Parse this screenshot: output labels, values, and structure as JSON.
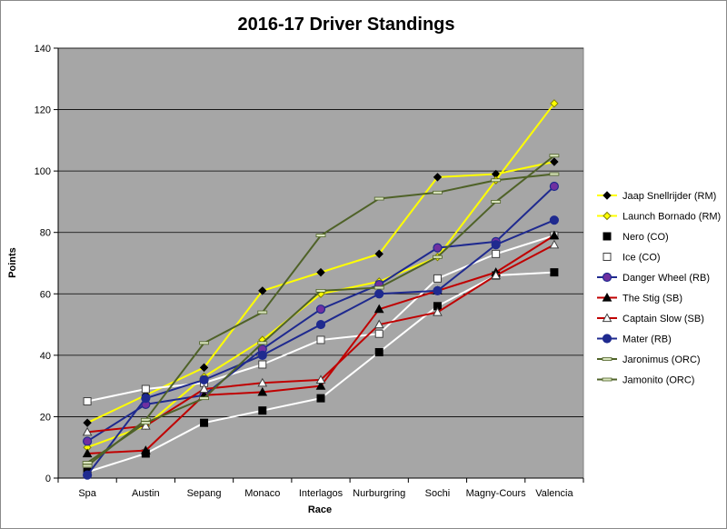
{
  "chart_data": {
    "type": "line",
    "title": "2016-17 Driver Standings",
    "xlabel": "Race",
    "ylabel": "Points",
    "ylim": [
      0,
      140
    ],
    "ytick_step": 20,
    "grid": "y-major",
    "legend_position": "right",
    "plot_background": "#a6a6a6",
    "categories": [
      "Spa",
      "Austin",
      "Sepang",
      "Monaco",
      "Interlagos",
      "Nurburgring",
      "Sochi",
      "Magny-Cours",
      "Valencia"
    ],
    "series": [
      {
        "name": "Jaap Snellrijder (RM)",
        "values": [
          18,
          27,
          36,
          61,
          67,
          73,
          98,
          99,
          103
        ],
        "color": "#ffff00",
        "marker": "diamond",
        "marker_fill": "#000000",
        "marker_stroke": "#000000"
      },
      {
        "name": "Launch Bornado (RM)",
        "values": [
          10,
          17,
          33,
          45,
          60,
          64,
          72,
          97,
          122
        ],
        "color": "#ffff00",
        "marker": "diamond",
        "marker_fill": "#ffff00",
        "marker_stroke": "#808000"
      },
      {
        "name": "Nero (CO)",
        "values": [
          2,
          8,
          18,
          22,
          26,
          41,
          56,
          66,
          67
        ],
        "color": "#ffffff",
        "marker": "square",
        "marker_fill": "#000000",
        "marker_stroke": "#000000"
      },
      {
        "name": "Ice (CO)",
        "values": [
          25,
          29,
          31,
          37,
          45,
          47,
          65,
          73,
          79
        ],
        "color": "#ffffff",
        "marker": "square",
        "marker_fill": "#ffffff",
        "marker_stroke": "#404040"
      },
      {
        "name": "Danger Wheel (RB)",
        "values": [
          12,
          24,
          27,
          42,
          55,
          63,
          75,
          77,
          95
        ],
        "color": "#1f2a8f",
        "marker": "circle",
        "marker_fill": "#7030a0",
        "marker_stroke": "#1f2a8f"
      },
      {
        "name": "The Stig (SB)",
        "values": [
          8,
          9,
          27,
          28,
          30,
          55,
          61,
          67,
          79
        ],
        "color": "#c00000",
        "marker": "triangle",
        "marker_fill": "#000000",
        "marker_stroke": "#000000"
      },
      {
        "name": "Captain Slow (SB)",
        "values": [
          15,
          17,
          29,
          31,
          32,
          50,
          54,
          66,
          76
        ],
        "color": "#c00000",
        "marker": "triangle",
        "marker_fill": "#ffffff",
        "marker_stroke": "#404040"
      },
      {
        "name": "Mater (RB)",
        "values": [
          1,
          26,
          32,
          40,
          50,
          60,
          61,
          76,
          84
        ],
        "color": "#1f2a8f",
        "marker": "circle",
        "marker_fill": "#1f2a8f",
        "marker_stroke": "#1f2a8f"
      },
      {
        "name": "Jaronimus (ORC)",
        "values": [
          4,
          19,
          44,
          54,
          79,
          91,
          93,
          97,
          99
        ],
        "color": "#4f6228",
        "marker": "dash",
        "marker_fill": "#d8e4bc",
        "marker_stroke": "#4f6228"
      },
      {
        "name": "Jamonito (ORC)",
        "values": [
          5,
          18,
          26,
          44,
          61,
          62,
          72,
          90,
          105
        ],
        "color": "#4f6228",
        "marker": "dash",
        "marker_fill": "#d8e4bc",
        "marker_stroke": "#4f6228"
      }
    ]
  }
}
